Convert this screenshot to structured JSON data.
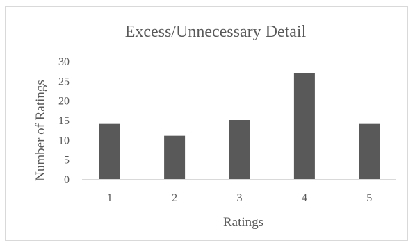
{
  "chart_data": {
    "type": "bar",
    "title": "Excess/Unnecessary Detail",
    "xlabel": "Ratings",
    "ylabel": "Number of Ratings",
    "categories": [
      "1",
      "2",
      "3",
      "4",
      "5"
    ],
    "values": [
      14,
      11,
      15,
      27,
      14
    ],
    "ylim": [
      0,
      30
    ],
    "yticks": [
      "0",
      "5",
      "10",
      "15",
      "20",
      "25",
      "30"
    ],
    "grid": false,
    "legend": "none",
    "bar_color": "#595959",
    "axis_color": "#d9d9d9"
  }
}
